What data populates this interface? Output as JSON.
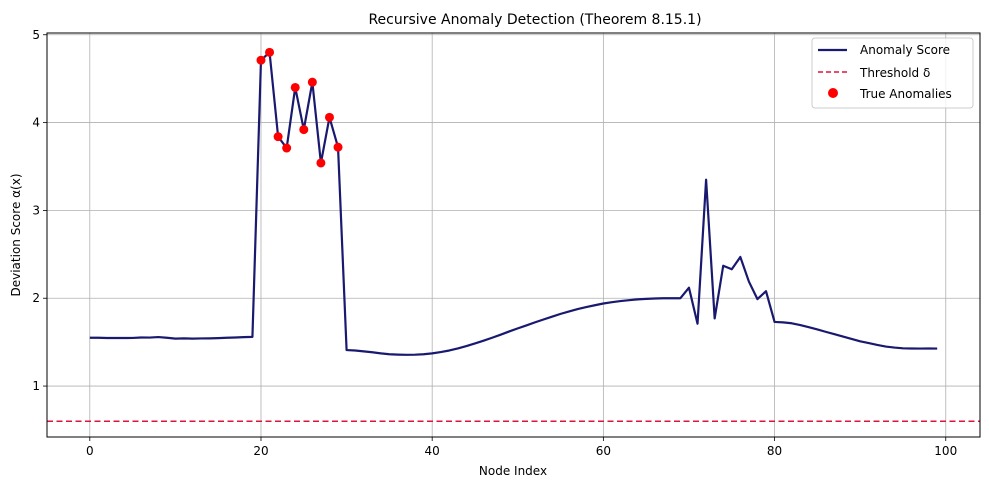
{
  "chart_data": {
    "type": "line",
    "title": "Recursive Anomaly Detection (Theorem 8.15.1)",
    "xlabel": "Node Index",
    "ylabel": "Deviation Score α(x)",
    "xlim": [
      -5,
      104
    ],
    "ylim": [
      0.42,
      5.02
    ],
    "xticks": [
      0,
      20,
      40,
      60,
      80,
      100
    ],
    "yticks": [
      1,
      2,
      3,
      4,
      5
    ],
    "grid": true,
    "legend_position": "upper right",
    "legend": [
      "Anomaly Score",
      "Threshold δ",
      "True Anomalies"
    ],
    "series": [
      {
        "name": "Anomaly Score",
        "kind": "line",
        "color": "#191970",
        "x": [
          0,
          1,
          2,
          3,
          4,
          5,
          6,
          7,
          8,
          9,
          10,
          11,
          12,
          13,
          14,
          15,
          16,
          17,
          18,
          19,
          20,
          21,
          22,
          23,
          24,
          25,
          26,
          27,
          28,
          29,
          30,
          31,
          32,
          33,
          34,
          35,
          36,
          37,
          38,
          39,
          40,
          41,
          42,
          43,
          44,
          45,
          46,
          47,
          48,
          49,
          50,
          51,
          52,
          53,
          54,
          55,
          56,
          57,
          58,
          59,
          60,
          61,
          62,
          63,
          64,
          65,
          66,
          67,
          68,
          69,
          70,
          71,
          72,
          73,
          74,
          75,
          76,
          77,
          78,
          79,
          80,
          81,
          82,
          83,
          84,
          85,
          86,
          87,
          88,
          89,
          90,
          91,
          92,
          93,
          94,
          95,
          96,
          97,
          98,
          99
        ],
        "y": [
          1.55,
          1.55,
          1.547,
          1.547,
          1.547,
          1.548,
          1.553,
          1.552,
          1.558,
          1.55,
          1.54,
          1.543,
          1.54,
          1.542,
          1.543,
          1.546,
          1.55,
          1.553,
          1.557,
          1.56,
          4.71,
          4.8,
          3.84,
          3.71,
          4.4,
          3.92,
          4.46,
          3.54,
          4.06,
          3.72,
          1.41,
          1.405,
          1.395,
          1.385,
          1.372,
          1.362,
          1.358,
          1.356,
          1.357,
          1.362,
          1.372,
          1.387,
          1.405,
          1.428,
          1.455,
          1.485,
          1.517,
          1.55,
          1.585,
          1.622,
          1.657,
          1.69,
          1.725,
          1.758,
          1.79,
          1.822,
          1.85,
          1.877,
          1.9,
          1.92,
          1.94,
          1.955,
          1.968,
          1.978,
          1.987,
          1.993,
          1.997,
          2.0,
          2.0,
          2.0,
          2.12,
          1.71,
          3.35,
          1.77,
          2.37,
          2.33,
          2.47,
          2.19,
          1.99,
          2.08,
          1.73,
          1.725,
          1.715,
          1.695,
          1.67,
          1.645,
          1.617,
          1.59,
          1.563,
          1.537,
          1.51,
          1.49,
          1.468,
          1.45,
          1.438,
          1.43,
          1.428,
          1.427,
          1.428,
          1.427
        ]
      },
      {
        "name": "Threshold δ",
        "kind": "hline",
        "color": "#dc143c",
        "y": 0.6
      },
      {
        "name": "True Anomalies",
        "kind": "scatter",
        "color": "#ff0000",
        "x": [
          20,
          21,
          22,
          23,
          24,
          25,
          26,
          27,
          28,
          29
        ],
        "y": [
          4.71,
          4.8,
          3.84,
          3.71,
          4.4,
          3.92,
          4.46,
          3.54,
          4.06,
          3.72
        ]
      }
    ]
  }
}
